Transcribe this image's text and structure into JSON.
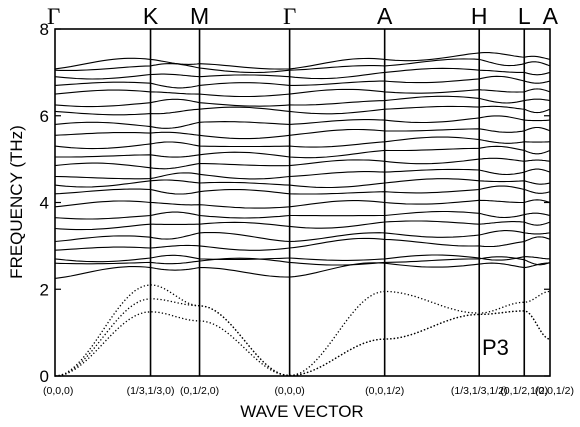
{
  "chart_data": {
    "type": "line",
    "ylabel": "FREQUENCY (THz)",
    "xlabel": "WAVE VECTOR",
    "ylim": [
      0,
      8
    ],
    "yticks": [
      "0",
      "2",
      "4",
      "6",
      "8"
    ],
    "structure_label": "P3",
    "symmetry_points": [
      {
        "label": "Γ",
        "coord": "(0,0,0)"
      },
      {
        "label": "K",
        "coord": "(1/3,1/3,0)"
      },
      {
        "label": "M",
        "coord": "(0,1/2,0)"
      },
      {
        "label": "Γ",
        "coord": "(0,0,0)"
      },
      {
        "label": "A",
        "coord": "(0,0,1/2)"
      },
      {
        "label": "H",
        "coord": "(1/3,1/3,1/2)"
      },
      {
        "label": "L",
        "coord": "(0,1/2,1/2)"
      },
      {
        "label": "A",
        "coord": "(0,0,1/2)"
      }
    ],
    "path_positions": [
      0,
      0.193,
      0.292,
      0.474,
      0.666,
      0.857,
      0.948,
      1.0
    ],
    "acoustic_series": [
      {
        "values": [
          0,
          2.1,
          1.62,
          0.01,
          0.85,
          1.42,
          1.5,
          0.85
        ]
      },
      {
        "values": [
          0,
          1.78,
          1.62,
          0.01,
          0.85,
          1.42,
          1.5,
          0.85
        ]
      },
      {
        "values": [
          0,
          1.48,
          1.27,
          0.01,
          1.95,
          1.45,
          1.7,
          1.95
        ]
      }
    ],
    "series": [
      {
        "values": [
          2.25,
          2.5,
          2.5,
          2.28,
          2.6,
          2.58,
          2.5,
          2.6
        ]
      },
      {
        "values": [
          2.6,
          2.62,
          2.65,
          2.62,
          2.62,
          2.7,
          2.68,
          2.62
        ]
      },
      {
        "values": [
          2.7,
          2.72,
          2.7,
          2.72,
          2.7,
          2.72,
          2.75,
          2.7
        ]
      },
      {
        "values": [
          2.9,
          2.95,
          3.0,
          2.95,
          3.15,
          3.0,
          3.1,
          3.15
        ]
      },
      {
        "values": [
          3.1,
          3.2,
          3.3,
          3.1,
          3.3,
          3.25,
          3.3,
          3.3
        ]
      },
      {
        "values": [
          3.4,
          3.5,
          3.5,
          3.45,
          3.55,
          3.5,
          3.55,
          3.55
        ]
      },
      {
        "values": [
          3.65,
          3.7,
          3.7,
          3.7,
          3.7,
          3.75,
          3.72,
          3.7
        ]
      },
      {
        "values": [
          3.9,
          4.0,
          3.95,
          3.9,
          4.0,
          4.05,
          4.0,
          4.0
        ]
      },
      {
        "values": [
          4.2,
          4.3,
          4.25,
          4.2,
          4.25,
          4.3,
          4.3,
          4.25
        ]
      },
      {
        "values": [
          4.4,
          4.5,
          4.45,
          4.4,
          4.45,
          4.5,
          4.5,
          4.45
        ]
      },
      {
        "values": [
          4.6,
          4.55,
          4.65,
          4.6,
          4.7,
          4.75,
          4.7,
          4.7
        ]
      },
      {
        "values": [
          4.85,
          4.8,
          4.9,
          4.85,
          4.95,
          5.0,
          4.95,
          4.95
        ]
      },
      {
        "values": [
          5.05,
          5.1,
          5.1,
          5.05,
          5.2,
          5.25,
          5.2,
          5.2
        ]
      },
      {
        "values": [
          5.3,
          5.35,
          5.3,
          5.3,
          5.4,
          5.45,
          5.4,
          5.4
        ]
      },
      {
        "values": [
          5.55,
          5.6,
          5.55,
          5.55,
          5.65,
          5.7,
          5.65,
          5.65
        ]
      },
      {
        "values": [
          5.8,
          5.75,
          5.85,
          5.8,
          5.9,
          5.95,
          5.9,
          5.9
        ]
      },
      {
        "values": [
          6.1,
          6.05,
          6.15,
          6.1,
          6.15,
          6.2,
          6.15,
          6.15
        ]
      },
      {
        "values": [
          6.25,
          6.3,
          6.3,
          6.25,
          6.35,
          6.4,
          6.35,
          6.35
        ]
      },
      {
        "values": [
          6.5,
          6.55,
          6.5,
          6.5,
          6.55,
          6.6,
          6.55,
          6.55
        ]
      },
      {
        "values": [
          6.7,
          6.75,
          6.7,
          6.7,
          6.8,
          6.85,
          6.8,
          6.8
        ]
      },
      {
        "values": [
          6.9,
          6.95,
          6.9,
          6.9,
          7.0,
          7.05,
          7.0,
          7.0
        ]
      },
      {
        "values": [
          7.05,
          7.15,
          7.1,
          7.05,
          7.15,
          7.3,
          7.2,
          7.15
        ]
      },
      {
        "values": [
          7.08,
          7.3,
          7.2,
          7.08,
          7.3,
          7.45,
          7.35,
          7.3
        ]
      }
    ]
  }
}
